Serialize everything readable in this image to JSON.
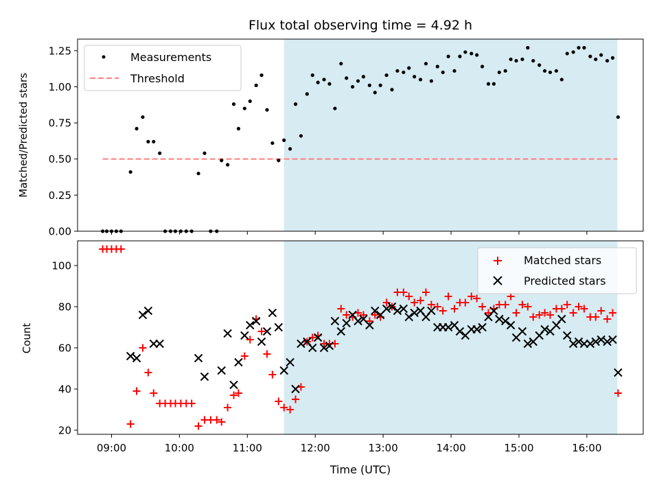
{
  "chart_data": [
    {
      "type": "scatter",
      "title": "Flux total observing time = 4.92 h",
      "ylabel": "Matched/Predicted stars",
      "xlim_hours": [
        8.5,
        16.83
      ],
      "ylim": [
        0,
        1.33
      ],
      "yticks": [
        0.0,
        0.25,
        0.5,
        0.75,
        1.0,
        1.25
      ],
      "ytick_labels": [
        "0.00",
        "0.25",
        "0.50",
        "0.75",
        "1.00",
        "1.25"
      ],
      "shaded_span_hours": [
        11.54,
        16.45
      ],
      "threshold": {
        "label": "Threshold",
        "value": 0.5,
        "x_range_hours": [
          8.87,
          16.45
        ],
        "color": "#ff7f7f"
      },
      "legend": [
        "Measurements",
        "Threshold"
      ],
      "series": [
        {
          "name": "Measurements",
          "color": "#000000",
          "points": [
            [
              8.87,
              0.0
            ],
            [
              8.93,
              0.0
            ],
            [
              9.0,
              0.0
            ],
            [
              9.07,
              0.0
            ],
            [
              9.14,
              0.0
            ],
            [
              9.28,
              0.41
            ],
            [
              9.37,
              0.71
            ],
            [
              9.46,
              0.79
            ],
            [
              9.54,
              0.62
            ],
            [
              9.62,
              0.62
            ],
            [
              9.71,
              0.54
            ],
            [
              9.79,
              0.0
            ],
            [
              9.87,
              0.0
            ],
            [
              9.94,
              0.0
            ],
            [
              10.02,
              0.0
            ],
            [
              10.1,
              0.0
            ],
            [
              10.18,
              0.0
            ],
            [
              10.28,
              0.4
            ],
            [
              10.37,
              0.54
            ],
            [
              10.46,
              0.0
            ],
            [
              10.55,
              0.0
            ],
            [
              10.62,
              0.49
            ],
            [
              10.71,
              0.46
            ],
            [
              10.8,
              0.88
            ],
            [
              10.87,
              0.71
            ],
            [
              10.96,
              0.85
            ],
            [
              11.04,
              0.9
            ],
            [
              11.13,
              1.01
            ],
            [
              11.21,
              1.08
            ],
            [
              11.29,
              0.84
            ],
            [
              11.37,
              0.61
            ],
            [
              11.46,
              0.49
            ],
            [
              11.54,
              0.63
            ],
            [
              11.63,
              0.57
            ],
            [
              11.71,
              0.88
            ],
            [
              11.79,
              0.66
            ],
            [
              11.88,
              0.95
            ],
            [
              11.96,
              1.08
            ],
            [
              12.04,
              1.03
            ],
            [
              12.13,
              1.05
            ],
            [
              12.21,
              1.02
            ],
            [
              12.29,
              0.85
            ],
            [
              12.38,
              1.16
            ],
            [
              12.46,
              1.06
            ],
            [
              12.55,
              1.0
            ],
            [
              12.63,
              1.04
            ],
            [
              12.71,
              1.07
            ],
            [
              12.8,
              1.01
            ],
            [
              12.88,
              0.96
            ],
            [
              12.96,
              1.01
            ],
            [
              13.05,
              1.08
            ],
            [
              13.13,
              0.98
            ],
            [
              13.21,
              1.11
            ],
            [
              13.3,
              1.1
            ],
            [
              13.38,
              1.13
            ],
            [
              13.46,
              1.07
            ],
            [
              13.55,
              1.05
            ],
            [
              13.63,
              1.16
            ],
            [
              13.71,
              1.04
            ],
            [
              13.8,
              1.14
            ],
            [
              13.88,
              1.1
            ],
            [
              13.96,
              1.21
            ],
            [
              14.05,
              1.11
            ],
            [
              14.13,
              1.21
            ],
            [
              14.21,
              1.24
            ],
            [
              14.3,
              1.23
            ],
            [
              14.38,
              1.22
            ],
            [
              14.46,
              1.14
            ],
            [
              14.55,
              1.02
            ],
            [
              14.63,
              1.02
            ],
            [
              14.71,
              1.1
            ],
            [
              14.8,
              1.11
            ],
            [
              14.88,
              1.19
            ],
            [
              14.96,
              1.18
            ],
            [
              15.05,
              1.19
            ],
            [
              15.13,
              1.27
            ],
            [
              15.21,
              1.18
            ],
            [
              15.3,
              1.15
            ],
            [
              15.38,
              1.11
            ],
            [
              15.46,
              1.1
            ],
            [
              15.55,
              1.11
            ],
            [
              15.63,
              1.05
            ],
            [
              15.71,
              1.23
            ],
            [
              15.8,
              1.24
            ],
            [
              15.88,
              1.27
            ],
            [
              15.96,
              1.27
            ],
            [
              16.05,
              1.21
            ],
            [
              16.13,
              1.19
            ],
            [
              16.21,
              1.22
            ],
            [
              16.3,
              1.18
            ],
            [
              16.38,
              1.2
            ],
            [
              16.46,
              0.79
            ]
          ]
        }
      ]
    },
    {
      "type": "scatter",
      "xlabel": "Time (UTC)",
      "ylabel": "Count",
      "xlim_hours": [
        8.5,
        16.83
      ],
      "ylim": [
        18,
        112
      ],
      "yticks": [
        20,
        40,
        60,
        80,
        100
      ],
      "ytick_labels": [
        "20",
        "40",
        "60",
        "80",
        "100"
      ],
      "xticks_hours": [
        9,
        10,
        11,
        12,
        13,
        14,
        15,
        16
      ],
      "xtick_labels": [
        "09:00",
        "10:00",
        "11:00",
        "12:00",
        "13:00",
        "14:00",
        "15:00",
        "16:00"
      ],
      "shaded_span_hours": [
        11.54,
        16.45
      ],
      "legend": [
        "Matched stars",
        "Predicted stars"
      ],
      "series": [
        {
          "name": "Matched stars",
          "marker": "+",
          "color": "#ff0000",
          "points": [
            [
              8.87,
              108
            ],
            [
              8.93,
              108
            ],
            [
              9.0,
              108
            ],
            [
              9.07,
              108
            ],
            [
              9.14,
              108
            ],
            [
              9.28,
              23
            ],
            [
              9.37,
              39
            ],
            [
              9.46,
              60
            ],
            [
              9.54,
              48
            ],
            [
              9.62,
              38
            ],
            [
              9.71,
              33
            ],
            [
              9.79,
              33
            ],
            [
              9.87,
              33
            ],
            [
              9.94,
              33
            ],
            [
              10.02,
              33
            ],
            [
              10.1,
              33
            ],
            [
              10.18,
              33
            ],
            [
              10.28,
              22
            ],
            [
              10.37,
              25
            ],
            [
              10.46,
              25
            ],
            [
              10.55,
              25
            ],
            [
              10.62,
              24
            ],
            [
              10.71,
              31
            ],
            [
              10.8,
              37
            ],
            [
              10.87,
              38
            ],
            [
              10.96,
              56
            ],
            [
              11.04,
              64
            ],
            [
              11.13,
              74
            ],
            [
              11.21,
              68
            ],
            [
              11.29,
              57
            ],
            [
              11.37,
              47
            ],
            [
              11.46,
              34
            ],
            [
              11.54,
              31
            ],
            [
              11.63,
              30
            ],
            [
              11.71,
              35
            ],
            [
              11.79,
              41
            ],
            [
              11.88,
              63
            ],
            [
              11.96,
              65
            ],
            [
              12.04,
              66
            ],
            [
              12.13,
              62
            ],
            [
              12.21,
              62
            ],
            [
              12.29,
              62
            ],
            [
              12.38,
              79
            ],
            [
              12.46,
              76
            ],
            [
              12.55,
              75
            ],
            [
              12.63,
              77
            ],
            [
              12.71,
              76
            ],
            [
              12.8,
              73
            ],
            [
              12.88,
              76
            ],
            [
              12.96,
              75
            ],
            [
              13.05,
              82
            ],
            [
              13.13,
              80
            ],
            [
              13.21,
              87
            ],
            [
              13.3,
              87
            ],
            [
              13.38,
              85
            ],
            [
              13.46,
              82
            ],
            [
              13.55,
              83
            ],
            [
              13.63,
              87
            ],
            [
              13.71,
              81
            ],
            [
              13.8,
              80
            ],
            [
              13.88,
              78
            ],
            [
              13.96,
              85
            ],
            [
              14.05,
              79
            ],
            [
              14.13,
              82
            ],
            [
              14.21,
              82
            ],
            [
              14.3,
              85
            ],
            [
              14.38,
              84
            ],
            [
              14.46,
              80
            ],
            [
              14.55,
              77
            ],
            [
              14.63,
              79
            ],
            [
              14.71,
              81
            ],
            [
              14.8,
              81
            ],
            [
              14.88,
              85
            ],
            [
              14.96,
              77
            ],
            [
              15.05,
              81
            ],
            [
              15.13,
              80
            ],
            [
              15.21,
              75
            ],
            [
              15.3,
              76
            ],
            [
              15.38,
              77
            ],
            [
              15.46,
              76
            ],
            [
              15.55,
              79
            ],
            [
              15.63,
              79
            ],
            [
              15.71,
              81
            ],
            [
              15.8,
              77
            ],
            [
              15.88,
              80
            ],
            [
              15.96,
              79
            ],
            [
              16.05,
              75
            ],
            [
              16.13,
              75
            ],
            [
              16.21,
              78
            ],
            [
              16.3,
              74
            ],
            [
              16.38,
              77
            ],
            [
              16.46,
              38
            ]
          ]
        },
        {
          "name": "Predicted stars",
          "marker": "x",
          "color": "#000000",
          "points": [
            [
              9.28,
              56
            ],
            [
              9.37,
              55
            ],
            [
              9.46,
              76
            ],
            [
              9.54,
              78
            ],
            [
              9.62,
              62
            ],
            [
              9.71,
              62
            ],
            [
              10.28,
              55
            ],
            [
              10.37,
              46
            ],
            [
              10.62,
              49
            ],
            [
              10.71,
              67
            ],
            [
              10.8,
              42
            ],
            [
              10.87,
              53
            ],
            [
              10.96,
              66
            ],
            [
              11.04,
              71
            ],
            [
              11.13,
              73
            ],
            [
              11.21,
              63
            ],
            [
              11.29,
              68
            ],
            [
              11.37,
              77
            ],
            [
              11.46,
              70
            ],
            [
              11.54,
              49
            ],
            [
              11.63,
              53
            ],
            [
              11.71,
              40
            ],
            [
              11.79,
              62
            ],
            [
              11.88,
              63
            ],
            [
              11.96,
              60
            ],
            [
              12.04,
              65
            ],
            [
              12.13,
              60
            ],
            [
              12.21,
              61
            ],
            [
              12.29,
              73
            ],
            [
              12.38,
              68
            ],
            [
              12.46,
              72
            ],
            [
              12.55,
              76
            ],
            [
              12.63,
              73
            ],
            [
              12.71,
              74
            ],
            [
              12.8,
              71
            ],
            [
              12.88,
              78
            ],
            [
              12.96,
              76
            ],
            [
              13.05,
              79
            ],
            [
              13.13,
              80
            ],
            [
              13.21,
              78
            ],
            [
              13.3,
              79
            ],
            [
              13.38,
              75
            ],
            [
              13.46,
              77
            ],
            [
              13.55,
              78
            ],
            [
              13.63,
              75
            ],
            [
              13.71,
              78
            ],
            [
              13.8,
              70
            ],
            [
              13.88,
              70
            ],
            [
              13.96,
              70
            ],
            [
              14.05,
              71
            ],
            [
              14.13,
              68
            ],
            [
              14.21,
              66
            ],
            [
              14.3,
              69
            ],
            [
              14.38,
              69
            ],
            [
              14.46,
              70
            ],
            [
              14.55,
              75
            ],
            [
              14.63,
              78
            ],
            [
              14.71,
              74
            ],
            [
              14.8,
              73
            ],
            [
              14.88,
              71
            ],
            [
              14.96,
              65
            ],
            [
              15.05,
              68
            ],
            [
              15.13,
              62
            ],
            [
              15.21,
              63
            ],
            [
              15.3,
              66
            ],
            [
              15.38,
              69
            ],
            [
              15.46,
              68
            ],
            [
              15.55,
              71
            ],
            [
              15.63,
              74
            ],
            [
              15.71,
              66
            ],
            [
              15.8,
              62
            ],
            [
              15.88,
              63
            ],
            [
              15.96,
              62
            ],
            [
              16.05,
              62
            ],
            [
              16.13,
              63
            ],
            [
              16.21,
              64
            ],
            [
              16.3,
              63
            ],
            [
              16.38,
              64
            ],
            [
              16.46,
              48
            ]
          ]
        }
      ]
    }
  ]
}
